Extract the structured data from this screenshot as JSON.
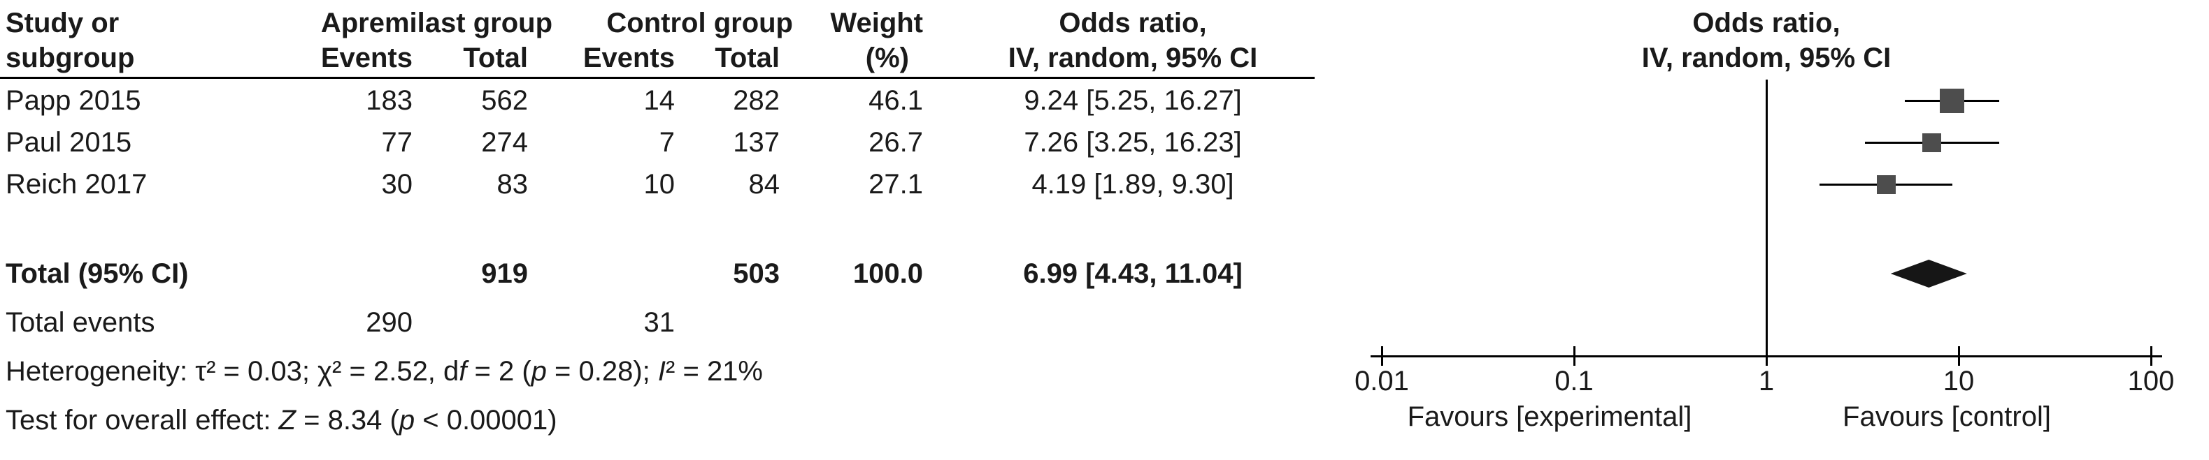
{
  "colors": {
    "text": "#1a1a1a",
    "square": "#4d4d4d",
    "line": "#000000",
    "diamond": "#161616"
  },
  "header": {
    "study_line1": "Study or",
    "study_line2": "subgroup",
    "treatment_group": "Apremilast group",
    "treatment_events": "Events",
    "treatment_total": "Total",
    "control_group": "Control group",
    "control_events": "Events",
    "control_total": "Total",
    "weight_line1": "Weight",
    "weight_line2": "(%)",
    "or_line1": "Odds ratio,",
    "or_line2": "IV, random, 95% CI",
    "plot_or_line1": "Odds ratio,",
    "plot_or_line2": "IV, random, 95% CI"
  },
  "rows": [
    {
      "study": "Papp 2015",
      "t_events": "183",
      "t_total": "562",
      "c_events": "14",
      "c_total": "282",
      "weight": "46.1",
      "or_ci": "9.24 [5.25, 16.27]"
    },
    {
      "study": "Paul 2015",
      "t_events": "77",
      "t_total": "274",
      "c_events": "7",
      "c_total": "137",
      "weight": "26.7",
      "or_ci": "7.26 [3.25, 16.23]"
    },
    {
      "study": "Reich 2017",
      "t_events": "30",
      "t_total": "83",
      "c_events": "10",
      "c_total": "84",
      "weight": "27.1",
      "or_ci": "4.19 [1.89, 9.30]"
    }
  ],
  "total_row": {
    "label": "Total (95% CI)",
    "t_total": "919",
    "c_total": "503",
    "weight": "100.0",
    "or_ci": "6.99 [4.43, 11.04]"
  },
  "total_events": {
    "label": "Total events",
    "t_events": "290",
    "c_events": "31"
  },
  "stats": {
    "heterogeneity": [
      {
        "t": "Heterogeneity: τ² = 0.03; χ² = 2.52, d"
      },
      {
        "t": "f",
        "i": true
      },
      {
        "t": " = 2 ("
      },
      {
        "t": "p",
        "i": true
      },
      {
        "t": " = 0.28); "
      },
      {
        "t": "I",
        "i": true
      },
      {
        "t": "² = 21%"
      }
    ],
    "overall_effect": [
      {
        "t": "Test for overall effect: "
      },
      {
        "t": "Z",
        "i": true
      },
      {
        "t": " = 8.34 ("
      },
      {
        "t": "p",
        "i": true
      },
      {
        "t": " < 0.00001)"
      }
    ]
  },
  "chart_data": {
    "type": "scatter",
    "variant": "forest-plot",
    "title": "Odds ratio, IV, random, 95% CI",
    "x_scale": "log10",
    "xlim": [
      0.01,
      100
    ],
    "ref_line": 1,
    "x_ticks": [
      0.01,
      0.1,
      1,
      10,
      100
    ],
    "x_tick_labels": [
      "0.01",
      "0.1",
      "1",
      "10",
      "100"
    ],
    "studies": [
      {
        "name": "Papp 2015",
        "or": 9.24,
        "ci_low": 5.25,
        "ci_high": 16.27,
        "weight_pct": 46.1
      },
      {
        "name": "Paul 2015",
        "or": 7.26,
        "ci_low": 3.25,
        "ci_high": 16.23,
        "weight_pct": 26.7
      },
      {
        "name": "Reich 2017",
        "or": 4.19,
        "ci_low": 1.89,
        "ci_high": 9.3,
        "weight_pct": 27.1
      }
    ],
    "total": {
      "name": "Total (95% CI)",
      "or": 6.99,
      "ci_low": 4.43,
      "ci_high": 11.04,
      "weight_pct": 100.0
    },
    "favours_left": "Favours [experimental]",
    "favours_right": "Favours [control]"
  }
}
